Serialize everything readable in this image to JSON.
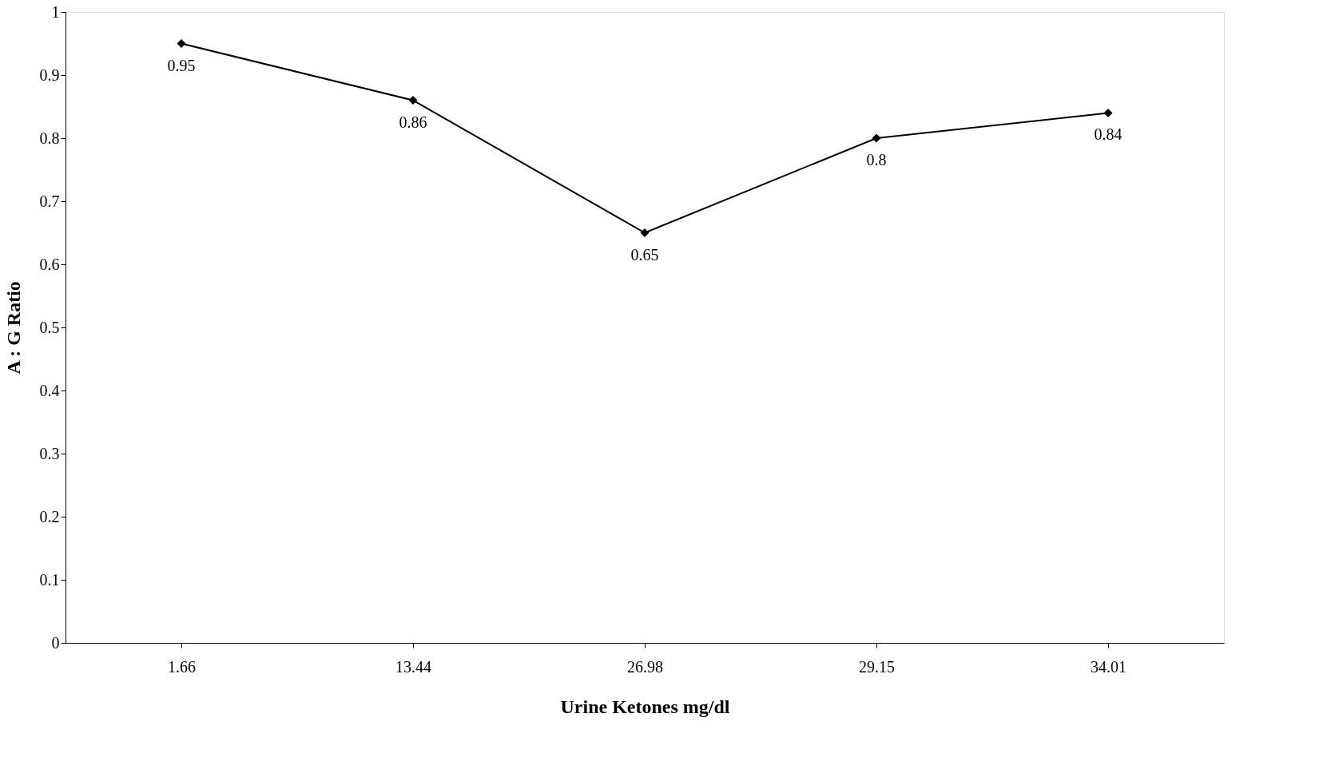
{
  "chart_data": {
    "type": "line",
    "xlabel": "Urine Ketones mg/dl",
    "ylabel": "A : G Ratio",
    "categories": [
      "1.66",
      "13.44",
      "26.98",
      "29.15",
      "34.01"
    ],
    "series": [
      {
        "color": "#000000",
        "values": [
          0.95,
          0.86,
          0.65,
          0.8,
          0.84
        ]
      }
    ],
    "ylim": [
      0,
      1
    ],
    "yticks": [
      0,
      0.1,
      0.2,
      0.3,
      0.4,
      0.5,
      0.6,
      0.7,
      0.8,
      0.9,
      1
    ],
    "data_labels": true,
    "marker": "diamond",
    "line_style": "solid",
    "grid": false
  }
}
